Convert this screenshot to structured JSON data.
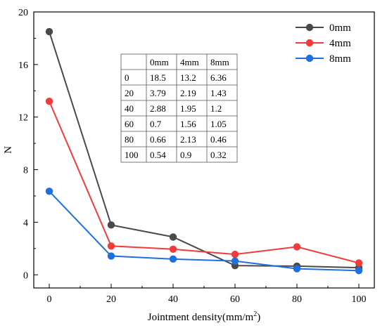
{
  "chart_data": {
    "type": "line",
    "xlabel": "Jointment density(mm/m",
    "xlabel_sup": "2",
    "xlabel_suffix": ")",
    "ylabel": "N",
    "x": [
      0,
      20,
      40,
      60,
      80,
      100
    ],
    "xlim": [
      -5,
      105
    ],
    "ylim": [
      -1,
      20
    ],
    "xticks": [
      0,
      20,
      40,
      60,
      80,
      100
    ],
    "yticks": [
      0,
      4,
      8,
      12,
      16,
      20
    ],
    "series": [
      {
        "name": "0mm",
        "color": "#4a4a4a",
        "values": [
          18.5,
          3.79,
          2.88,
          0.7,
          0.66,
          0.54
        ]
      },
      {
        "name": "4mm",
        "color": "#f23b3b",
        "values": [
          13.2,
          2.19,
          1.95,
          1.56,
          2.13,
          0.9
        ]
      },
      {
        "name": "8mm",
        "color": "#1f6fe0",
        "values": [
          6.36,
          1.43,
          1.2,
          1.05,
          0.46,
          0.32
        ]
      }
    ],
    "legend": "top-right",
    "grid": false,
    "table": {
      "header": [
        "",
        "0mm",
        "4mm",
        "8mm"
      ],
      "rows": [
        [
          "0",
          "18.5",
          "13.2",
          "6.36"
        ],
        [
          "20",
          "3.79",
          "2.19",
          "1.43"
        ],
        [
          "40",
          "2.88",
          "1.95",
          "1.2"
        ],
        [
          "60",
          "0.7",
          "1.56",
          "1.05"
        ],
        [
          "80",
          "0.66",
          "2.13",
          "0.46"
        ],
        [
          "100",
          "0.54",
          "0.9",
          "0.32"
        ]
      ]
    }
  }
}
